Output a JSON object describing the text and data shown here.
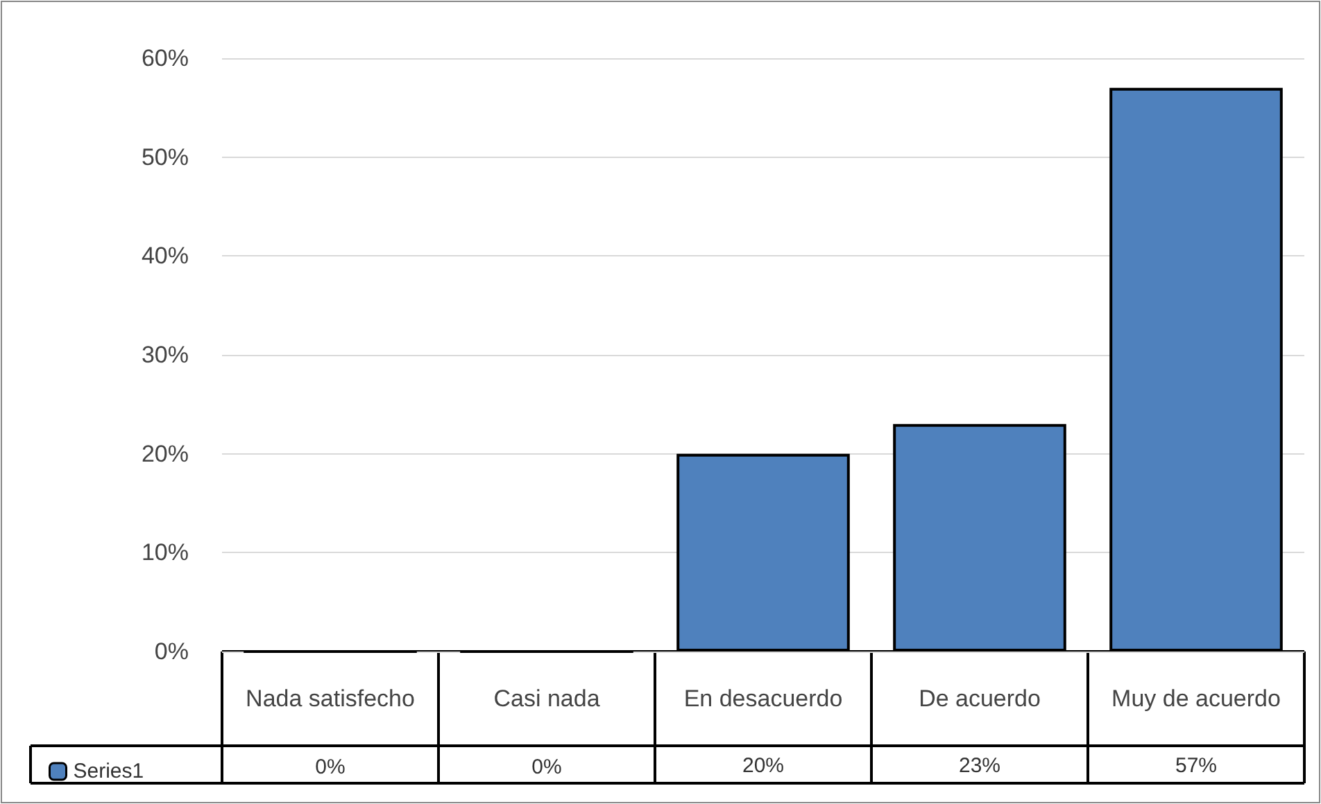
{
  "chart_data": {
    "type": "bar",
    "categories": [
      "Nada satisfecho",
      "Casi nada",
      "En desacuerdo",
      "De acuerdo",
      "Muy de acuerdo"
    ],
    "series": [
      {
        "name": "Series1",
        "color": "#4f81bd",
        "values": [
          0,
          0,
          20,
          23,
          57
        ],
        "value_labels": [
          "0%",
          "0%",
          "20%",
          "23%",
          "57%"
        ]
      }
    ],
    "ylim": [
      0,
      60
    ],
    "yticks": [
      {
        "value": 0,
        "label": "0%"
      },
      {
        "value": 10,
        "label": "10%"
      },
      {
        "value": 20,
        "label": "20%"
      },
      {
        "value": 30,
        "label": "30%"
      },
      {
        "value": 40,
        "label": "40%"
      },
      {
        "value": 50,
        "label": "50%"
      },
      {
        "value": 60,
        "label": "60%"
      }
    ],
    "grid": "y",
    "legend": "bottom"
  }
}
